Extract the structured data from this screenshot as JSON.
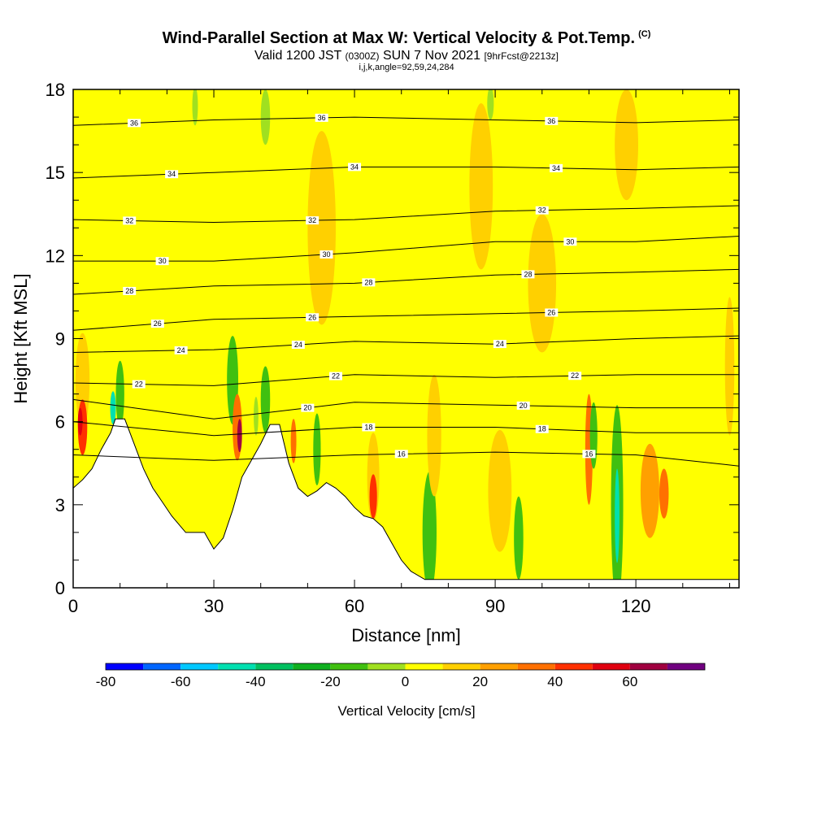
{
  "title": "Wind-Parallel Section at Max W: Vertical Velocity & Pot.Temp.",
  "copyright_mark": "(C)",
  "subtitle": {
    "valid": "Valid 1200 JST",
    "utc": "(0300Z)",
    "date": "SUN 7 Nov 2021",
    "forecast": "[9hrFcst@2213z]"
  },
  "coords": "i,j,k,angle=92,59,24,284",
  "chart_data": {
    "type": "heatmap",
    "xlabel": "Distance [nm]",
    "ylabel": "Height [Kft MSL]",
    "xlim": [
      0,
      142
    ],
    "ylim": [
      0,
      18
    ],
    "x_ticks": [
      0,
      30,
      60,
      90,
      120
    ],
    "x_tick_labels": [
      "0",
      "30",
      "60",
      "90",
      "120"
    ],
    "y_ticks": [
      0,
      3,
      6,
      9,
      12,
      15,
      18
    ],
    "y_tick_labels": [
      "0",
      "3",
      "6",
      "9",
      "12",
      "15",
      "18"
    ],
    "background_level": "0 to 10 cm/s (yellow)",
    "terrain_profile": {
      "x": [
        0,
        2,
        4,
        6,
        8,
        9,
        11,
        13,
        15,
        17,
        19,
        21,
        24,
        28,
        30,
        32,
        34,
        35,
        36,
        38,
        40,
        42,
        44,
        46,
        48,
        50,
        52,
        54,
        56,
        58,
        60,
        62,
        64,
        66,
        68,
        70,
        72,
        75,
        142
      ],
      "y": [
        3.6,
        3.9,
        4.3,
        5.0,
        5.6,
        6.1,
        6.1,
        5.2,
        4.3,
        3.6,
        3.1,
        2.6,
        2.0,
        2.0,
        1.4,
        1.8,
        2.8,
        3.4,
        4.0,
        4.6,
        5.2,
        5.9,
        5.9,
        4.5,
        3.6,
        3.3,
        3.5,
        3.8,
        3.6,
        3.3,
        2.9,
        2.6,
        2.5,
        2.2,
        1.6,
        1.0,
        0.6,
        0.3,
        0.3
      ]
    },
    "theta_contours": [
      {
        "label": "36",
        "x": [
          0,
          30,
          60,
          90,
          120,
          142
        ],
        "y": [
          16.7,
          16.9,
          17.0,
          16.9,
          16.8,
          16.9
        ],
        "label_positions": [
          13,
          53,
          102
        ]
      },
      {
        "label": "34",
        "x": [
          0,
          30,
          60,
          90,
          120,
          142
        ],
        "y": [
          14.8,
          15.0,
          15.2,
          15.2,
          15.1,
          15.2
        ],
        "label_positions": [
          21,
          60,
          103
        ]
      },
      {
        "label": "32",
        "x": [
          0,
          30,
          60,
          90,
          120,
          142
        ],
        "y": [
          13.3,
          13.2,
          13.3,
          13.6,
          13.7,
          13.8
        ],
        "label_positions": [
          12,
          51,
          100
        ]
      },
      {
        "label": "30",
        "x": [
          0,
          30,
          60,
          90,
          120,
          142
        ],
        "y": [
          11.8,
          11.8,
          12.1,
          12.5,
          12.5,
          12.7
        ],
        "label_positions": [
          19,
          54,
          106
        ]
      },
      {
        "label": "28",
        "x": [
          0,
          30,
          60,
          90,
          120,
          142
        ],
        "y": [
          10.6,
          10.9,
          11.0,
          11.3,
          11.4,
          11.5
        ],
        "label_positions": [
          12,
          63,
          97
        ]
      },
      {
        "label": "26",
        "x": [
          0,
          30,
          60,
          90,
          120,
          142
        ],
        "y": [
          9.3,
          9.7,
          9.8,
          9.9,
          10.0,
          10.1
        ],
        "label_positions": [
          18,
          51,
          102
        ]
      },
      {
        "label": "24",
        "x": [
          0,
          30,
          60,
          90,
          120,
          142
        ],
        "y": [
          8.5,
          8.6,
          8.9,
          8.8,
          9.0,
          9.1
        ],
        "label_positions": [
          23,
          48,
          91
        ]
      },
      {
        "label": "22",
        "x": [
          0,
          30,
          60,
          90,
          120,
          142
        ],
        "y": [
          7.4,
          7.3,
          7.7,
          7.6,
          7.7,
          7.7
        ],
        "label_positions": [
          14,
          56,
          107
        ]
      },
      {
        "label": "20",
        "x": [
          0,
          30,
          60,
          90,
          120,
          142
        ],
        "y": [
          6.8,
          6.1,
          6.7,
          6.6,
          6.5,
          6.5
        ],
        "label_positions": [
          50,
          96
        ]
      },
      {
        "label": "18",
        "x": [
          0,
          30,
          60,
          90,
          120,
          142
        ],
        "y": [
          6.0,
          5.5,
          5.8,
          5.8,
          5.6,
          5.6
        ],
        "label_positions": [
          63,
          100
        ]
      },
      {
        "label": "16",
        "x": [
          0,
          30,
          60,
          90,
          120,
          142
        ],
        "y": [
          4.8,
          4.6,
          4.8,
          4.9,
          4.8,
          4.4
        ],
        "label_positions": [
          70,
          110
        ]
      }
    ],
    "colorbar": {
      "label": "Vertical Velocity [cm/s]",
      "levels": [
        -80,
        -70,
        -60,
        -50,
        -40,
        -30,
        -20,
        -10,
        0,
        10,
        20,
        30,
        40,
        50,
        60,
        70
      ],
      "tick_labels": [
        "-80",
        "-60",
        "-40",
        "-20",
        "0",
        "20",
        "40",
        "60"
      ],
      "colors": [
        "#0000ff",
        "#0066ff",
        "#00c8ff",
        "#00e0b0",
        "#00c060",
        "#10b020",
        "#40c010",
        "#a0e020",
        "#ffff00",
        "#ffd000",
        "#ffa000",
        "#ff7000",
        "#ff3000",
        "#e00010",
        "#a00040",
        "#700080"
      ]
    }
  }
}
